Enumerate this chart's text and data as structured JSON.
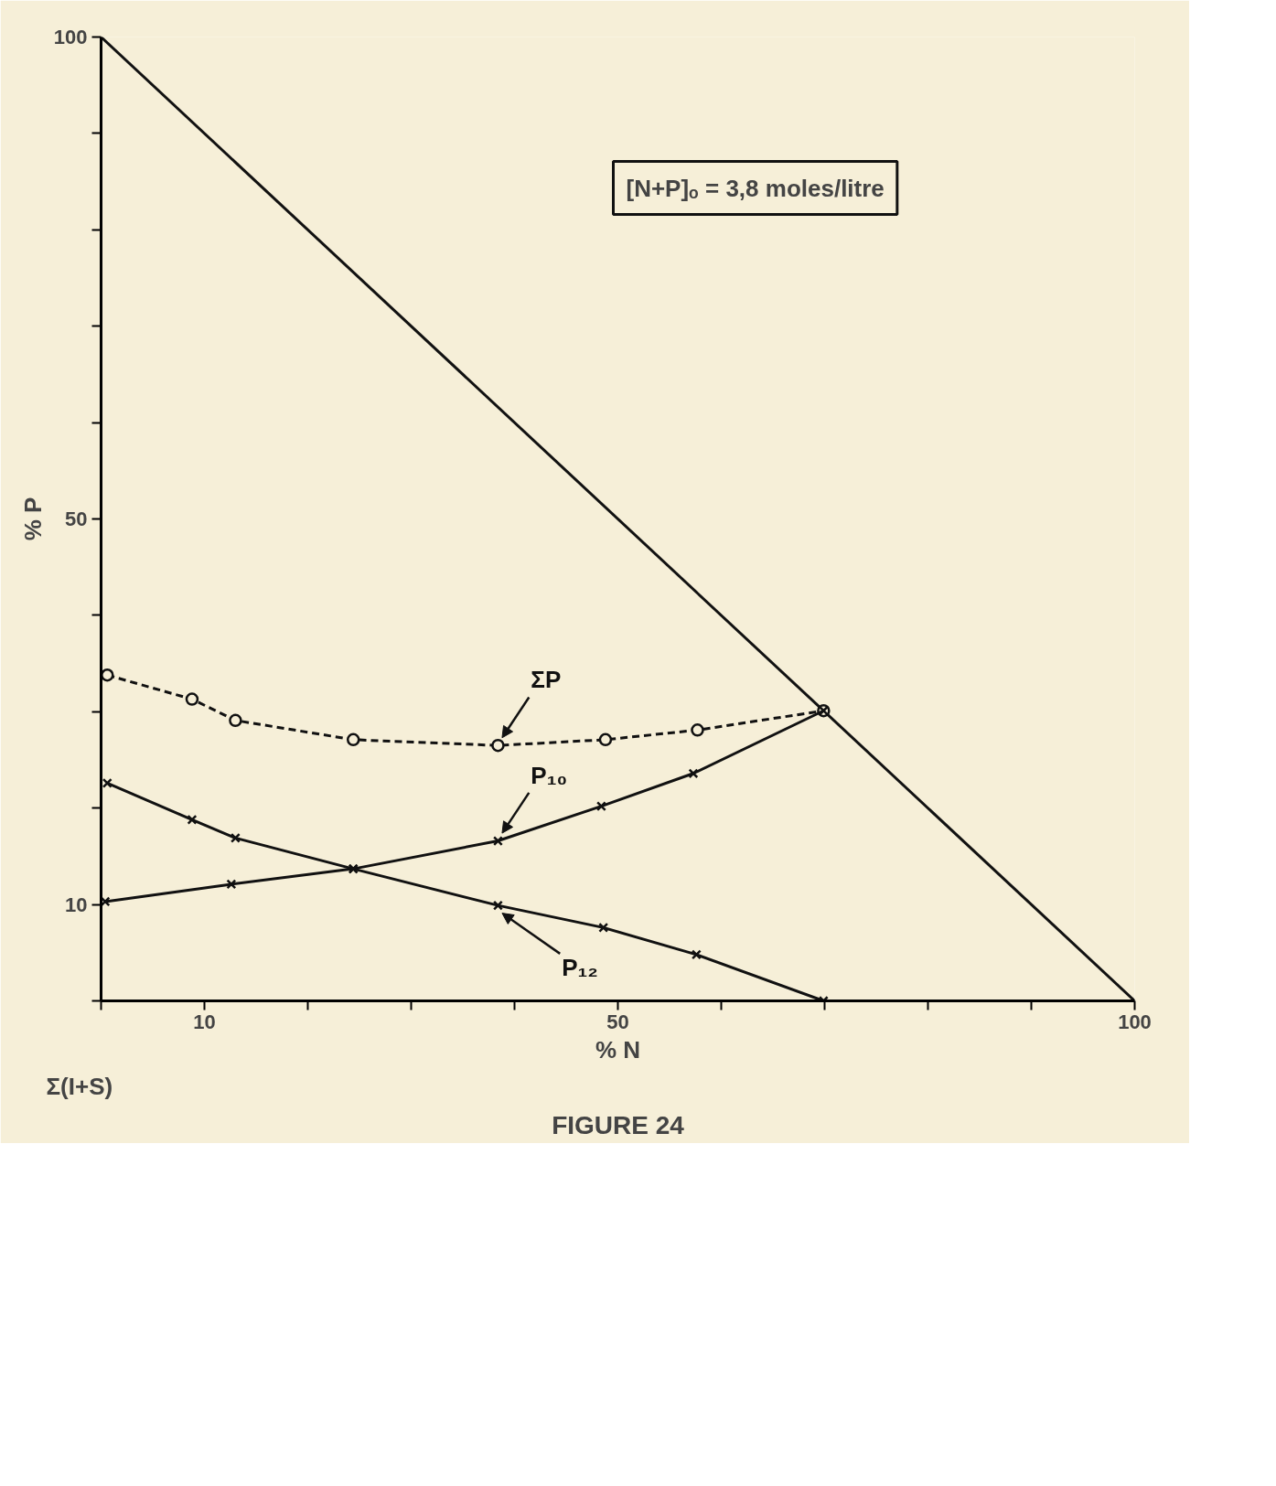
{
  "chart_data": {
    "type": "line",
    "title": "FIGURE 24",
    "xlabel": "% N",
    "ylabel": "% P",
    "xlim": [
      0,
      100
    ],
    "ylim": [
      0,
      100
    ],
    "xticks": [
      {
        "value": 0,
        "label": null
      },
      10,
      {
        "value": 20,
        "label": null
      },
      {
        "value": 30,
        "label": null
      },
      {
        "value": 40,
        "label": null
      },
      50,
      {
        "value": 60,
        "label": null
      },
      {
        "value": 70,
        "label": null
      },
      {
        "value": 80,
        "label": null
      },
      {
        "value": 90,
        "label": null
      },
      100
    ],
    "yticks": [
      {
        "value": 0,
        "label": null
      },
      10,
      {
        "value": 20,
        "label": null
      },
      {
        "value": 30,
        "label": null
      },
      {
        "value": 40,
        "label": null
      },
      50,
      {
        "value": 60,
        "label": null
      },
      {
        "value": 70,
        "label": null
      },
      {
        "value": 80,
        "label": null
      },
      {
        "value": 90,
        "label": null
      },
      100
    ],
    "grid": false,
    "series": [
      {
        "color": "#111111",
        "x": [
          0,
          100
        ],
        "values": [
          100,
          0
        ],
        "marker": "none",
        "line_style": "solid"
      },
      {
        "name": "ΣP",
        "color": "#111111",
        "x": [
          0.6,
          8.8,
          13.0,
          24.4,
          38.4,
          48.8,
          57.7,
          69.9
        ],
        "values": [
          33.8,
          31.3,
          29.1,
          27.1,
          26.5,
          27.1,
          28.1,
          30.1
        ],
        "marker": "circle",
        "line_style": "dashed"
      },
      {
        "name": "P₁₀",
        "color": "#111111",
        "x": [
          0.6,
          8.8,
          13.0,
          24.4,
          38.4,
          48.4,
          57.3,
          69.9
        ],
        "values": [
          22.6,
          18.8,
          16.9,
          13.7,
          16.6,
          20.2,
          23.6,
          30.1
        ],
        "marker": "cross",
        "line_style": "solid"
      },
      {
        "name": "P₁₂",
        "color": "#111111",
        "x": [
          0.4,
          12.6,
          24.4,
          38.4,
          48.6,
          57.6,
          69.9
        ],
        "values": [
          10.3,
          12.1,
          13.7,
          9.9,
          7.6,
          4.8,
          0
        ],
        "marker": "cross",
        "line_style": "solid"
      }
    ],
    "annotations": [
      "[N+P]ₒ = 3,8 moles/litre",
      "Σ(I+S)"
    ]
  }
}
